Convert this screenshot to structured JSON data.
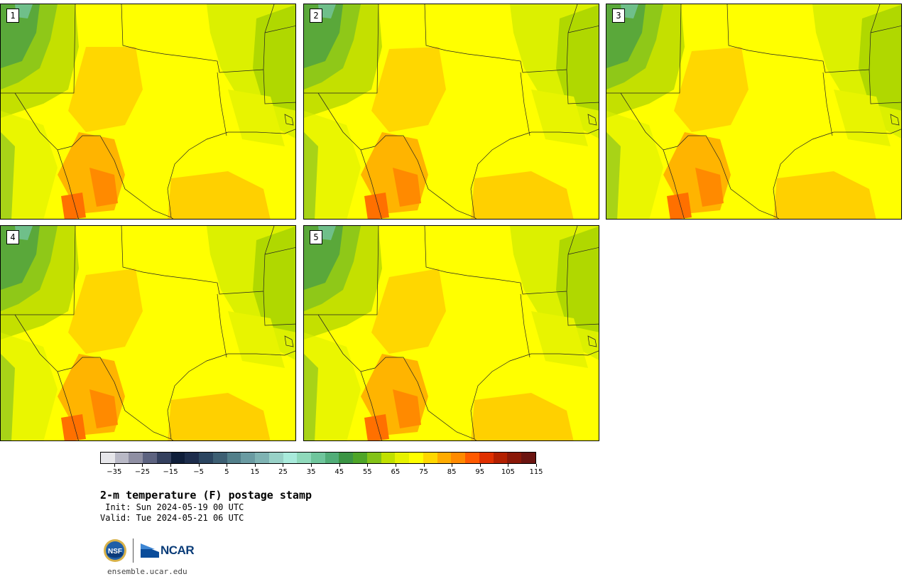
{
  "panels": [
    {
      "label": "1"
    },
    {
      "label": "2"
    },
    {
      "label": "3"
    },
    {
      "label": "4"
    },
    {
      "label": "5"
    }
  ],
  "colorbar": {
    "colors": [
      "#e6e6ea",
      "#b9b9c6",
      "#8f8fa3",
      "#5d6380",
      "#34405e",
      "#0f1e3a",
      "#1d2d4c",
      "#2b4560",
      "#3d5f73",
      "#527f8a",
      "#6a9ba2",
      "#7fb3b3",
      "#98d1c7",
      "#a8eadb",
      "#8fd9bb",
      "#6fc59c",
      "#51ad78",
      "#3b9444",
      "#4ea528",
      "#83c218",
      "#c0e000",
      "#e6f200",
      "#ffff00",
      "#ffd700",
      "#ffab00",
      "#ff8a00",
      "#ff5a00",
      "#e03000",
      "#b32000",
      "#8a1808",
      "#6a1410"
    ],
    "ticks": [
      "−35",
      "−25",
      "−15",
      "−5",
      "5",
      "15",
      "25",
      "35",
      "45",
      "55",
      "65",
      "75",
      "85",
      "95",
      "105",
      "115"
    ],
    "min": -40,
    "max": 120
  },
  "title": "2-m temperature (F) postage stamp",
  "init": " Init: Sun 2024-05-19 00 UTC",
  "valid": "Valid: Tue 2024-05-21 06 UTC",
  "logo": {
    "nsf": "NSF",
    "ncar": "NCAR"
  },
  "url": "ensemble.ucar.edu"
}
